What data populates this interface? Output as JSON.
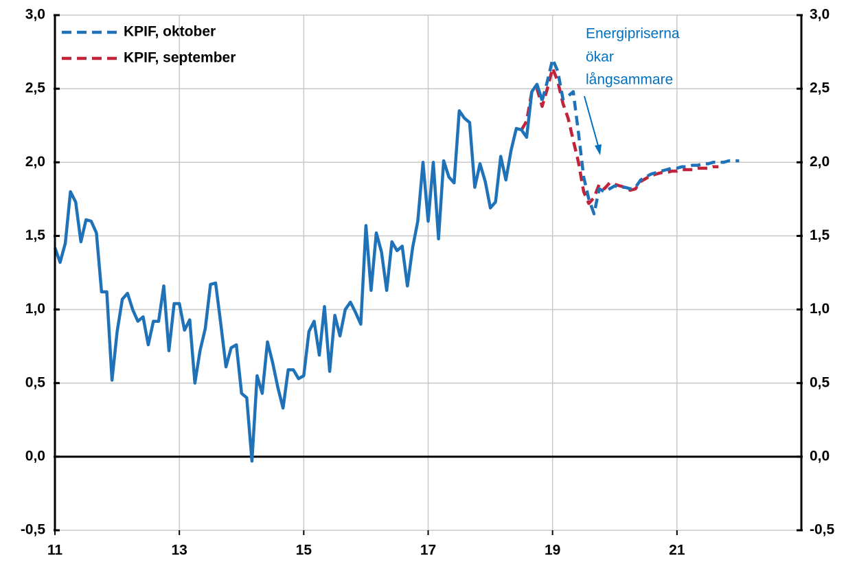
{
  "chart_data": {
    "type": "line",
    "xlim": [
      11,
      23
    ],
    "xticks": [
      11,
      13,
      15,
      17,
      19,
      21
    ],
    "ylim": [
      -0.5,
      3.0
    ],
    "yticks": [
      {
        "value": -0.5,
        "label": "-0,5"
      },
      {
        "value": 0,
        "label": "0,0"
      },
      {
        "value": 0.5,
        "label": "0,5"
      },
      {
        "value": 1.0,
        "label": "1,0"
      },
      {
        "value": 1.5,
        "label": "1,5"
      },
      {
        "value": 2.0,
        "label": "2,0"
      },
      {
        "value": 2.5,
        "label": "2,5"
      },
      {
        "value": 3.0,
        "label": "3,0"
      }
    ],
    "grid": true,
    "legend": "upper left",
    "annotation": [
      "Energipriserna",
      "ökar",
      "långsammare"
    ],
    "x": [
      11,
      11.083,
      11.167,
      11.25,
      11.333,
      11.417,
      11.5,
      11.583,
      11.667,
      11.75,
      11.833,
      11.917,
      12,
      12.083,
      12.167,
      12.25,
      12.333,
      12.417,
      12.5,
      12.583,
      12.667,
      12.75,
      12.833,
      12.917,
      13,
      13.083,
      13.167,
      13.25,
      13.333,
      13.417,
      13.5,
      13.583,
      13.667,
      13.75,
      13.833,
      13.917,
      14,
      14.083,
      14.167,
      14.25,
      14.333,
      14.417,
      14.5,
      14.583,
      14.667,
      14.75,
      14.833,
      14.917,
      15,
      15.083,
      15.167,
      15.25,
      15.333,
      15.417,
      15.5,
      15.583,
      15.667,
      15.75,
      15.833,
      15.917,
      16,
      16.083,
      16.167,
      16.25,
      16.333,
      16.417,
      16.5,
      16.583,
      16.667,
      16.75,
      16.833,
      16.917,
      17,
      17.083,
      17.167,
      17.25,
      17.333,
      17.417,
      17.5,
      17.583,
      17.667,
      17.75,
      17.833,
      17.917,
      18,
      18.083,
      18.167,
      18.25,
      18.333,
      18.417,
      18.5,
      18.583,
      18.667,
      18.75,
      18.833,
      18.917,
      19,
      19.083,
      19.167,
      19.25,
      19.333,
      19.417,
      19.5,
      19.583,
      19.667,
      19.75,
      19.833,
      19.917,
      20,
      20.083,
      20.167,
      20.25,
      20.333,
      20.417,
      20.5,
      20.583,
      20.667,
      20.75,
      20.833,
      20.917,
      21,
      21.083,
      21.167,
      21.25,
      21.333,
      21.417,
      21.5,
      21.583,
      21.667,
      21.75,
      21.833,
      21.917,
      22
    ],
    "series": [
      {
        "name": "KPIF, september",
        "color": "#c0233a",
        "dashed": true,
        "values": [
          null,
          null,
          null,
          null,
          null,
          null,
          null,
          null,
          null,
          null,
          null,
          null,
          null,
          null,
          null,
          null,
          null,
          null,
          null,
          null,
          null,
          null,
          null,
          null,
          null,
          null,
          null,
          null,
          null,
          null,
          null,
          null,
          null,
          null,
          null,
          null,
          null,
          null,
          null,
          null,
          null,
          null,
          null,
          null,
          null,
          null,
          null,
          null,
          null,
          null,
          null,
          null,
          null,
          null,
          null,
          null,
          null,
          null,
          null,
          null,
          null,
          null,
          null,
          null,
          null,
          null,
          null,
          null,
          null,
          null,
          null,
          null,
          null,
          null,
          null,
          null,
          null,
          null,
          null,
          null,
          null,
          null,
          null,
          null,
          null,
          null,
          null,
          null,
          null,
          null,
          2.22,
          2.28,
          2.48,
          2.5,
          2.38,
          2.5,
          2.64,
          2.55,
          2.4,
          2.3,
          2.15,
          2.0,
          1.8,
          1.72,
          1.76,
          1.85,
          1.82,
          1.86,
          1.85,
          1.84,
          1.83,
          1.81,
          1.82,
          1.87,
          1.89,
          1.91,
          1.92,
          1.93,
          1.93,
          1.94,
          1.94,
          1.95,
          1.95,
          1.95,
          1.96,
          1.96,
          1.96,
          1.97,
          1.97,
          null,
          null,
          null,
          null
        ]
      },
      {
        "name": "KPIF, oktober",
        "color": "#1f72b8",
        "dashed": true,
        "values": [
          null,
          null,
          null,
          null,
          null,
          null,
          null,
          null,
          null,
          null,
          null,
          null,
          null,
          null,
          null,
          null,
          null,
          null,
          null,
          null,
          null,
          null,
          null,
          null,
          null,
          null,
          null,
          null,
          null,
          null,
          null,
          null,
          null,
          null,
          null,
          null,
          null,
          null,
          null,
          null,
          null,
          null,
          null,
          null,
          null,
          null,
          null,
          null,
          null,
          null,
          null,
          null,
          null,
          null,
          null,
          null,
          null,
          null,
          null,
          null,
          null,
          null,
          null,
          null,
          null,
          null,
          null,
          null,
          null,
          null,
          null,
          null,
          null,
          null,
          null,
          null,
          null,
          null,
          null,
          null,
          null,
          null,
          null,
          null,
          null,
          null,
          null,
          null,
          null,
          null,
          null,
          null,
          null,
          null,
          2.42,
          2.55,
          2.7,
          2.62,
          2.43,
          2.45,
          2.48,
          2.2,
          1.9,
          1.75,
          1.65,
          1.82,
          1.8,
          1.82,
          1.84,
          1.83,
          1.83,
          1.82,
          1.83,
          1.88,
          1.9,
          1.92,
          1.93,
          1.94,
          1.95,
          1.96,
          1.96,
          1.97,
          1.97,
          1.98,
          1.98,
          1.99,
          1.99,
          2.0,
          2.0,
          2.0,
          2.01,
          2.01,
          2.01
        ]
      },
      {
        "color": "#1f72b8",
        "dashed": false,
        "values": [
          1.42,
          1.32,
          1.45,
          1.8,
          1.73,
          1.46,
          1.61,
          1.6,
          1.52,
          1.12,
          1.12,
          0.52,
          0.85,
          1.07,
          1.11,
          1.0,
          0.92,
          0.95,
          0.76,
          0.92,
          0.92,
          1.16,
          0.72,
          1.04,
          1.04,
          0.86,
          0.93,
          0.5,
          0.72,
          0.87,
          1.17,
          1.18,
          0.9,
          0.61,
          0.74,
          0.76,
          0.43,
          0.4,
          -0.03,
          0.55,
          0.43,
          0.78,
          0.64,
          0.47,
          0.33,
          0.59,
          0.59,
          0.53,
          0.55,
          0.85,
          0.92,
          0.69,
          1.02,
          0.58,
          0.96,
          0.82,
          1.0,
          1.05,
          0.98,
          0.9,
          1.57,
          1.13,
          1.52,
          1.39,
          1.13,
          1.46,
          1.4,
          1.43,
          1.16,
          1.42,
          1.6,
          2.0,
          1.6,
          2.0,
          1.48,
          2.01,
          1.9,
          1.86,
          2.35,
          2.3,
          2.27,
          1.83,
          1.99,
          1.87,
          1.69,
          1.73,
          2.04,
          1.88,
          2.08,
          2.23,
          2.22,
          2.17,
          2.48,
          2.53,
          2.42,
          null,
          null,
          null,
          null,
          null,
          null,
          null,
          null,
          null,
          null,
          null,
          null,
          null,
          null,
          null,
          null,
          null,
          null,
          null,
          null,
          null,
          null,
          null,
          null,
          null,
          null,
          null,
          null,
          null,
          null,
          null,
          null,
          null,
          null,
          null,
          null,
          null,
          null
        ]
      }
    ]
  }
}
